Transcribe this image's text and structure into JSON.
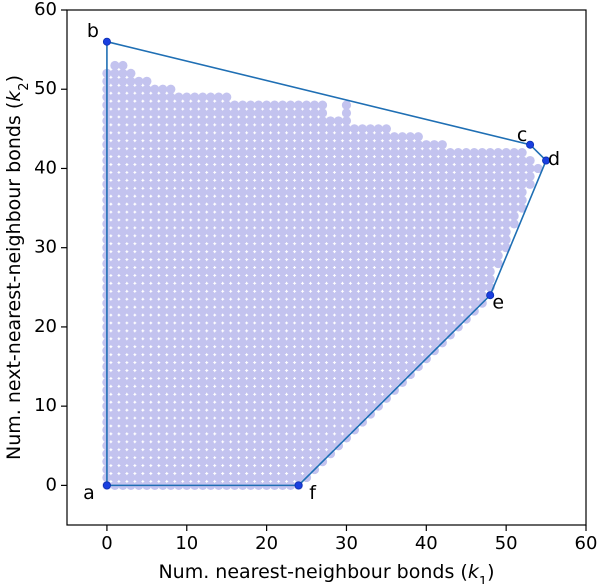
{
  "chart_data": {
    "type": "scatter",
    "title": "",
    "xlabel": "Num. nearest-neighbour bonds (k₁)",
    "ylabel": "Num. next-nearest-neighbour bonds (k₂)",
    "xlabel_parts": {
      "text": "Num. nearest-neighbour bonds (",
      "var": "k",
      "sub": "1",
      "close": ")"
    },
    "ylabel_parts": {
      "text": "Num. next-nearest-neighbour bonds (",
      "var": "k",
      "sub": "2",
      "close": ")"
    },
    "xlim": [
      -5,
      60
    ],
    "ylim": [
      -5,
      60
    ],
    "xticks": [
      0,
      10,
      20,
      30,
      40,
      50,
      60
    ],
    "yticks": [
      0,
      10,
      20,
      30,
      40,
      50,
      60
    ],
    "grid": false,
    "point_color": "#c3c3ef",
    "hull_color": "#1f6fb4",
    "vertex_color": "#1a3fe0",
    "region_upper_k2_by_k1": [
      [
        0,
        52
      ],
      [
        1,
        53
      ],
      [
        2,
        53
      ],
      [
        3,
        52
      ],
      [
        4,
        51
      ],
      [
        5,
        51
      ],
      [
        6,
        50
      ],
      [
        7,
        50
      ],
      [
        8,
        50
      ],
      [
        9,
        49
      ],
      [
        10,
        49
      ],
      [
        11,
        49
      ],
      [
        12,
        49
      ],
      [
        13,
        49
      ],
      [
        14,
        49
      ],
      [
        15,
        49
      ],
      [
        16,
        48
      ],
      [
        17,
        48
      ],
      [
        18,
        48
      ],
      [
        19,
        48
      ],
      [
        20,
        48
      ],
      [
        21,
        48
      ],
      [
        22,
        48
      ],
      [
        23,
        48
      ],
      [
        24,
        48
      ],
      [
        25,
        48
      ],
      [
        26,
        48
      ],
      [
        27,
        48
      ],
      [
        28,
        46
      ],
      [
        29,
        46
      ],
      [
        30,
        48
      ],
      [
        31,
        45
      ],
      [
        32,
        45
      ],
      [
        33,
        45
      ],
      [
        34,
        45
      ],
      [
        35,
        45
      ],
      [
        36,
        44
      ],
      [
        37,
        44
      ],
      [
        38,
        44
      ],
      [
        39,
        44
      ],
      [
        40,
        43
      ],
      [
        41,
        43
      ],
      [
        42,
        43
      ],
      [
        43,
        42
      ],
      [
        44,
        42
      ],
      [
        45,
        42
      ],
      [
        46,
        42
      ],
      [
        47,
        42
      ],
      [
        48,
        42
      ],
      [
        49,
        42
      ],
      [
        50,
        42
      ],
      [
        51,
        42
      ],
      [
        52,
        42
      ],
      [
        53,
        41
      ],
      [
        54,
        40
      ]
    ],
    "region_lower_k2_by_k1": [
      [
        24,
        0
      ],
      [
        25,
        1
      ],
      [
        26,
        2
      ],
      [
        27,
        3
      ],
      [
        28,
        4
      ],
      [
        29,
        5
      ],
      [
        30,
        6
      ],
      [
        31,
        7
      ],
      [
        32,
        8
      ],
      [
        33,
        9
      ],
      [
        34,
        10
      ],
      [
        35,
        11
      ],
      [
        36,
        12
      ],
      [
        37,
        13
      ],
      [
        38,
        14
      ],
      [
        39,
        15
      ],
      [
        40,
        16
      ],
      [
        41,
        17
      ],
      [
        42,
        18
      ],
      [
        43,
        19
      ],
      [
        44,
        20
      ],
      [
        45,
        21
      ],
      [
        46,
        22
      ],
      [
        47,
        23
      ],
      [
        48,
        25
      ],
      [
        49,
        28
      ],
      [
        50,
        30
      ],
      [
        51,
        33
      ],
      [
        52,
        35
      ],
      [
        53,
        38
      ],
      [
        54,
        40
      ]
    ],
    "hull": [
      {
        "label": "a",
        "k1": 0,
        "k2": 0
      },
      {
        "label": "b",
        "k1": 0,
        "k2": 56
      },
      {
        "label": "c",
        "k1": 53,
        "k2": 43
      },
      {
        "label": "d",
        "k1": 55,
        "k2": 41
      },
      {
        "label": "e",
        "k1": 48,
        "k2": 24
      },
      {
        "label": "f",
        "k1": 24,
        "k2": 0
      }
    ]
  }
}
